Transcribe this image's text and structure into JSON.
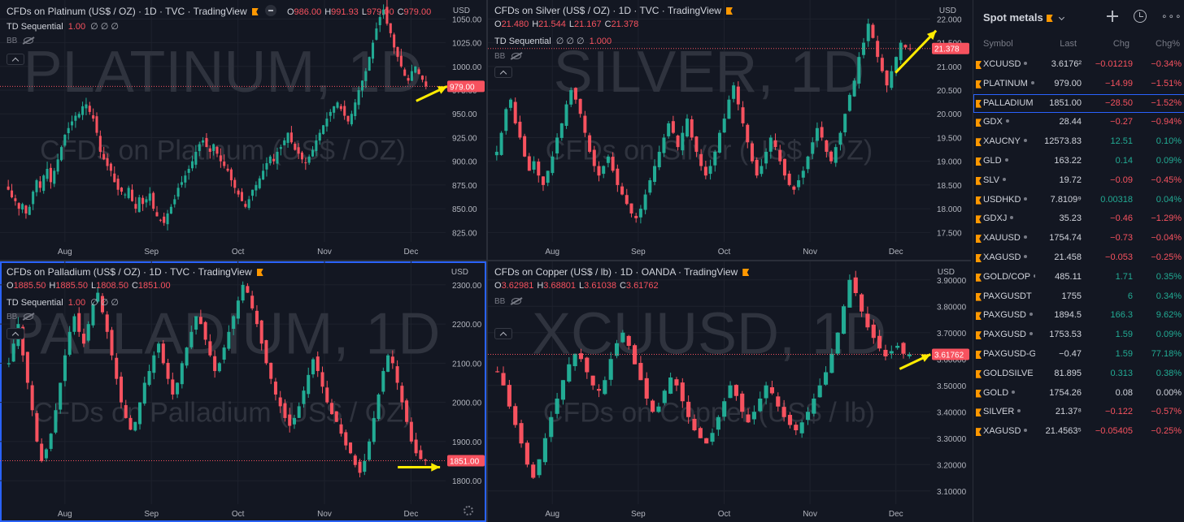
{
  "charts": [
    {
      "id": "platinum",
      "title": "CFDs on Platinum (US$ / OZ) · 1D · TVC · TradingView",
      "ohlc": {
        "o": "986.00",
        "h": "991.93",
        "l": "979.00",
        "c": "979.00"
      },
      "indicator": "TD Sequential",
      "indicator_value": "1.00",
      "indicator_symbols": "∅ ∅ ∅",
      "bb_label": "BB",
      "currency": "USD",
      "watermark": "PLATINUM, 1D",
      "watermark_sub": "CFDs on Platinum (US$ / OZ)",
      "price_axis": [
        "1050.00",
        "1025.00",
        "1000.00",
        "975.00",
        "950.00",
        "925.00",
        "900.00",
        "875.00",
        "850.00",
        "825.00"
      ],
      "price_tick_values": [
        1050,
        1025,
        1000,
        975,
        950,
        925,
        900,
        875,
        850,
        825
      ],
      "ylim": [
        815,
        1070
      ],
      "current_price": "979.00",
      "current_value": 979,
      "months": [
        "Aug",
        "Sep",
        "Oct",
        "Nov",
        "Dec"
      ],
      "closes": [
        870,
        862,
        858,
        850,
        855,
        845,
        852,
        868,
        880,
        872,
        885,
        892,
        878,
        890,
        902,
        915,
        928,
        935,
        942,
        948,
        950,
        958,
        960,
        952,
        945,
        930,
        910,
        902,
        895,
        890,
        878,
        870,
        868,
        865,
        872,
        858,
        850,
        862,
        855,
        860,
        866,
        850,
        842,
        838,
        835,
        845,
        852,
        860,
        872,
        878,
        885,
        892,
        900,
        910,
        918,
        922,
        915,
        910,
        918,
        908,
        900,
        895,
        890,
        880,
        872,
        865,
        858,
        852,
        860,
        870,
        875,
        882,
        890,
        898,
        905,
        900,
        910,
        915,
        922,
        930,
        920,
        912,
        908,
        902,
        898,
        905,
        912,
        922,
        930,
        938,
        945,
        952,
        958,
        962,
        955,
        948,
        942,
        950,
        962,
        975,
        985,
        995,
        1010,
        1025,
        1040,
        1052,
        1060,
        1045,
        1035,
        1020,
        1010,
        1000,
        990,
        985,
        995,
        1000,
        992,
        986,
        979
      ]
    },
    {
      "id": "silver",
      "title": "CFDs on Silver (US$ / OZ) · 1D · TVC · TradingView",
      "ohlc": {
        "o": "21.480",
        "h": "21.544",
        "l": "21.167",
        "c": "21.378"
      },
      "indicator": "TD Sequential",
      "indicator_value": "1.000",
      "indicator_symbols": "∅ ∅ ∅",
      "bb_label": "BB",
      "currency": "USD",
      "watermark": "SILVER, 1D",
      "watermark_sub": "CFDs on Silver (US$ / OZ)",
      "price_axis": [
        "22.000",
        "21.500",
        "21.000",
        "20.500",
        "20.000",
        "19.500",
        "19.000",
        "18.500",
        "18.000",
        "17.500"
      ],
      "price_tick_values": [
        22,
        21.5,
        21,
        20.5,
        20,
        19.5,
        19,
        18.5,
        18,
        17.5
      ],
      "ylim": [
        17.3,
        22.4
      ],
      "current_price": "21.378",
      "current_value": 21.378,
      "months": [
        "Aug",
        "Sep",
        "Oct",
        "Nov",
        "Dec"
      ],
      "closes": [
        19.2,
        19.6,
        20.1,
        20.3,
        19.8,
        19.5,
        19.1,
        18.8,
        19.0,
        18.7,
        18.5,
        18.8,
        19.1,
        19.5,
        19.8,
        20.2,
        20.5,
        20.3,
        20.0,
        19.6,
        19.2,
        18.9,
        18.7,
        18.9,
        19.1,
        18.8,
        18.5,
        18.3,
        18.1,
        17.9,
        17.8,
        18.0,
        18.3,
        18.6,
        18.9,
        19.2,
        19.5,
        19.8,
        19.6,
        19.3,
        19.6,
        19.9,
        19.5,
        19.2,
        18.9,
        18.7,
        18.9,
        19.2,
        19.6,
        19.9,
        20.3,
        20.6,
        20.2,
        19.8,
        19.4,
        19.0,
        18.7,
        18.9,
        19.2,
        19.5,
        19.3,
        19.0,
        18.7,
        18.5,
        18.4,
        18.6,
        18.8,
        19.1,
        19.4,
        19.7,
        19.5,
        19.2,
        19.0,
        19.3,
        19.6,
        20.0,
        20.4,
        20.7,
        21.2,
        21.5,
        21.9,
        21.6,
        21.2,
        20.9,
        20.6,
        20.9,
        21.2,
        21.5,
        21.4,
        21.378
      ]
    },
    {
      "id": "palladium",
      "title": "CFDs on Palladium (US$ / OZ) · 1D · TVC · TradingView",
      "ohlc": {
        "o": "1885.50",
        "h": "1885.50",
        "l": "1808.50",
        "c": "1851.00"
      },
      "indicator": "TD Sequential",
      "indicator_value": "1.00",
      "indicator_symbols": "∅ ∅ ∅",
      "bb_label": "BB",
      "currency": "USD",
      "watermark": "PALLADIUM, 1D",
      "watermark_sub": "CFDs on Palladium (US$ / OZ)",
      "price_axis": [
        "2300.00",
        "2200.00",
        "2100.00",
        "2000.00",
        "1900.00",
        "1800.00"
      ],
      "price_tick_values": [
        2300,
        2200,
        2100,
        2000,
        1900,
        1800
      ],
      "ylim": [
        1740,
        2360
      ],
      "current_price": "1851.00",
      "current_value": 1851,
      "months": [
        "Aug",
        "Sep",
        "Oct",
        "Nov",
        "Dec"
      ],
      "closes": [
        2100,
        2150,
        2200,
        2120,
        2050,
        1980,
        1900,
        1850,
        1880,
        1920,
        1980,
        2050,
        2120,
        2180,
        2220,
        2180,
        2150,
        2200,
        2250,
        2280,
        2230,
        2180,
        2120,
        2060,
        2000,
        1960,
        1930,
        1950,
        2000,
        2050,
        2080,
        2120,
        2150,
        2100,
        2060,
        2020,
        2050,
        2100,
        2140,
        2180,
        2220,
        2200,
        2160,
        2120,
        2080,
        2100,
        2140,
        2180,
        2220,
        2260,
        2300,
        2280,
        2240,
        2200,
        2150,
        2100,
        2060,
        2020,
        1990,
        1960,
        1940,
        1960,
        1990,
        2030,
        2070,
        2110,
        2080,
        2040,
        2000,
        1970,
        1950,
        1920,
        1890,
        1870,
        1840,
        1820,
        1850,
        1900,
        1960,
        2020,
        2080,
        2120,
        2100,
        2050,
        2000,
        1950,
        1900,
        1870,
        1855,
        1851
      ]
    },
    {
      "id": "copper",
      "title": "CFDs on Copper (US$ / lb) · 1D · OANDA · TradingView",
      "ohlc": {
        "o": "3.62981",
        "h": "3.68801",
        "l": "3.61038",
        "c": "3.61762"
      },
      "indicator": "",
      "indicator_value": "",
      "indicator_symbols": "",
      "bb_label": "BB",
      "currency": "USD",
      "watermark": "XCUUSD, 1D",
      "watermark_sub": "CFDs on Copper (US$ / lb)",
      "price_axis": [
        "3.90000",
        "3.80000",
        "3.70000",
        "3.60000",
        "3.50000",
        "3.40000",
        "3.30000",
        "3.20000",
        "3.10000"
      ],
      "price_tick_values": [
        3.9,
        3.8,
        3.7,
        3.6,
        3.5,
        3.4,
        3.3,
        3.2,
        3.1
      ],
      "ylim": [
        3.05,
        3.97
      ],
      "current_price": "3.61762",
      "current_value": 3.61762,
      "months": [
        "Aug",
        "Sep",
        "Oct",
        "Nov",
        "Dec"
      ],
      "closes": [
        3.55,
        3.5,
        3.42,
        3.35,
        3.28,
        3.2,
        3.15,
        3.22,
        3.3,
        3.38,
        3.45,
        3.52,
        3.58,
        3.62,
        3.6,
        3.55,
        3.5,
        3.48,
        3.52,
        3.6,
        3.66,
        3.7,
        3.65,
        3.58,
        3.52,
        3.45,
        3.4,
        3.42,
        3.48,
        3.53,
        3.5,
        3.44,
        3.38,
        3.33,
        3.3,
        3.28,
        3.32,
        3.38,
        3.44,
        3.5,
        3.46,
        3.4,
        3.36,
        3.4,
        3.45,
        3.5,
        3.47,
        3.42,
        3.38,
        3.35,
        3.33,
        3.36,
        3.4,
        3.45,
        3.5,
        3.55,
        3.62,
        3.7,
        3.8,
        3.9,
        3.85,
        3.78,
        3.72,
        3.68,
        3.64,
        3.61,
        3.63,
        3.65,
        3.62,
        3.6176
      ]
    }
  ],
  "watchlist": {
    "title": "Spot metals",
    "columns": {
      "symbol": "Symbol",
      "last": "Last",
      "chg": "Chg",
      "chgp": "Chg%"
    },
    "rows": [
      {
        "symbol": "XCUUSD",
        "last": "3.6176²",
        "chg": "−0.01219",
        "chgp": "−0.34%",
        "dir": "neg",
        "dot": true
      },
      {
        "symbol": "PLATINUM",
        "last": "979.00",
        "chg": "−14.99",
        "chgp": "−1.51%",
        "dir": "neg",
        "dot": true
      },
      {
        "symbol": "PALLADIUM",
        "last": "1851.00",
        "chg": "−28.50",
        "chgp": "−1.52%",
        "dir": "neg",
        "dot": true,
        "selected": true
      },
      {
        "symbol": "GDX",
        "last": "28.44",
        "chg": "−0.27",
        "chgp": "−0.94%",
        "dir": "neg",
        "dot": true
      },
      {
        "symbol": "XAUCNY",
        "last": "12573.83",
        "chg": "12.51",
        "chgp": "0.10%",
        "dir": "pos",
        "dot": true
      },
      {
        "symbol": "GLD",
        "last": "163.22",
        "chg": "0.14",
        "chgp": "0.09%",
        "dir": "pos",
        "dot": true
      },
      {
        "symbol": "SLV",
        "last": "19.72",
        "chg": "−0.09",
        "chgp": "−0.45%",
        "dir": "neg",
        "dot": true
      },
      {
        "symbol": "USDHKD",
        "last": "7.8109⁹",
        "chg": "0.00318",
        "chgp": "0.04%",
        "dir": "pos",
        "dot": true
      },
      {
        "symbol": "GDXJ",
        "last": "35.23",
        "chg": "−0.46",
        "chgp": "−1.29%",
        "dir": "neg",
        "dot": true
      },
      {
        "symbol": "XAUUSD",
        "last": "1754.74",
        "chg": "−0.73",
        "chgp": "−0.04%",
        "dir": "neg",
        "dot": true
      },
      {
        "symbol": "XAGUSD",
        "last": "21.458",
        "chg": "−0.053",
        "chgp": "−0.25%",
        "dir": "neg",
        "dot": true
      },
      {
        "symbol": "GOLD/COP",
        "last": "485.11",
        "chg": "1.71",
        "chgp": "0.35%",
        "dir": "pos",
        "dot": true
      },
      {
        "symbol": "PAXGUSDT",
        "last": "1755",
        "chg": "6",
        "chgp": "0.34%",
        "dir": "pos",
        "dot": false
      },
      {
        "symbol": "PAXGUSD",
        "last": "1894.5",
        "chg": "166.3",
        "chgp": "9.62%",
        "dir": "pos",
        "dot": true
      },
      {
        "symbol": "PAXGUSD",
        "last": "1753.53",
        "chg": "1.59",
        "chgp": "0.09%",
        "dir": "pos",
        "dot": true
      },
      {
        "symbol": "PAXGUSD-GO",
        "last": "−0.47",
        "chg": "1.59",
        "chgp": "77.18%",
        "dir": "pos",
        "dot": false
      },
      {
        "symbol": "GOLDSILVE",
        "last": "81.895",
        "chg": "0.313",
        "chgp": "0.38%",
        "dir": "pos",
        "dot": true
      },
      {
        "symbol": "GOLD",
        "last": "1754.26",
        "chg": "0.08",
        "chgp": "0.00%",
        "dir": "neu",
        "dot": true
      },
      {
        "symbol": "SILVER",
        "last": "21.37⁸",
        "chg": "−0.122",
        "chgp": "−0.57%",
        "dir": "neg",
        "dot": true
      },
      {
        "symbol": "XAGUSD",
        "last": "21.4563⁵",
        "chg": "−0.05405",
        "chgp": "−0.25%",
        "dir": "neg",
        "dot": true
      }
    ]
  },
  "colors": {
    "up": "#22ab94",
    "down": "#f7525f",
    "accent": "#2962ff",
    "arrow": "#ffeb00",
    "flag": "#ff9800"
  }
}
